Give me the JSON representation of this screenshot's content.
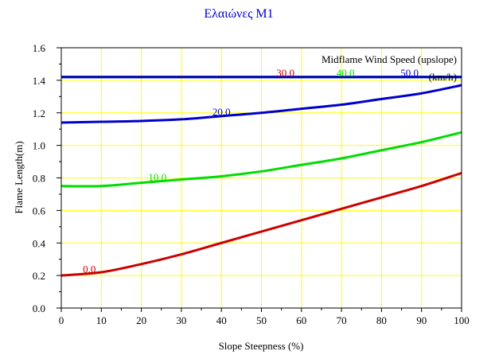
{
  "chart_data": {
    "type": "line",
    "title": "Ελαιώνες Μ1",
    "xlabel": "Slope Steepness (%)",
    "ylabel": "Flame Length(m)",
    "xlim": [
      0,
      100
    ],
    "ylim": [
      0,
      1.6
    ],
    "x_ticks": [
      "0",
      "10",
      "20",
      "30",
      "40",
      "50",
      "60",
      "70",
      "80",
      "90",
      "100"
    ],
    "y_ticks": [
      "0.0",
      "0.2",
      "0.4",
      "0.6",
      "0.8",
      "1.0",
      "1.2",
      "1.4",
      "1.6"
    ],
    "grid": true,
    "grid_color": "#ffff00",
    "legend_title": "Midflame Wind Speed (upslope)",
    "legend_unit": "(km/h)",
    "x": [
      0,
      10,
      20,
      30,
      40,
      50,
      60,
      70,
      80,
      90,
      100
    ],
    "series": [
      {
        "name": "0.0",
        "color": "#cc0000",
        "label_x": 7,
        "values": [
          0.2,
          0.22,
          0.27,
          0.33,
          0.4,
          0.47,
          0.54,
          0.61,
          0.68,
          0.75,
          0.83
        ]
      },
      {
        "name": "10.0",
        "color": "#00dd00",
        "label_x": 24,
        "values": [
          0.75,
          0.75,
          0.77,
          0.79,
          0.81,
          0.84,
          0.88,
          0.92,
          0.97,
          1.02,
          1.08
        ]
      },
      {
        "name": "20.0",
        "color": "#0000cc",
        "label_x": 40,
        "values": [
          1.14,
          1.145,
          1.15,
          1.16,
          1.18,
          1.2,
          1.225,
          1.25,
          1.285,
          1.32,
          1.37
        ]
      },
      {
        "name": "30.0",
        "color": "#cc0000",
        "label_x": 56,
        "values": [
          1.42,
          1.42,
          1.42,
          1.42,
          1.42,
          1.42,
          1.42,
          1.42,
          1.42,
          1.42,
          1.42
        ]
      },
      {
        "name": "40.0",
        "color": "#00dd00",
        "label_x": 71,
        "values": [
          1.42,
          1.42,
          1.42,
          1.42,
          1.42,
          1.42,
          1.42,
          1.42,
          1.42,
          1.42,
          1.42
        ]
      },
      {
        "name": "50.0",
        "color": "#0000cc",
        "label_x": 87,
        "values": [
          1.42,
          1.42,
          1.42,
          1.42,
          1.42,
          1.42,
          1.42,
          1.42,
          1.42,
          1.42,
          1.42
        ]
      }
    ]
  }
}
